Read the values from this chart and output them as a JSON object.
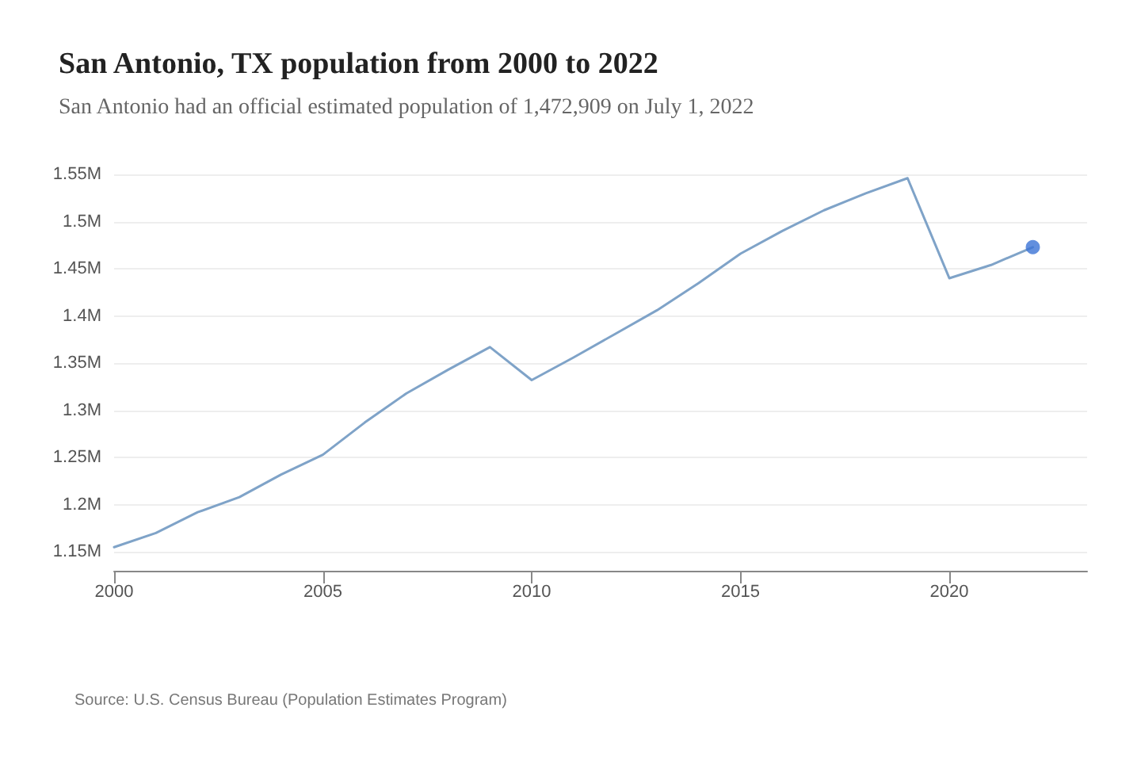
{
  "chart_data": {
    "type": "line",
    "title": "San Antonio, TX population from 2000 to 2022",
    "subtitle": "San Antonio had an official estimated population of 1,472,909 on July 1, 2022",
    "annotations": [
      "Source: U.S. Census Bureau (Population Estimates Program)"
    ],
    "x": [
      2000,
      2001,
      2002,
      2003,
      2004,
      2005,
      2006,
      2007,
      2008,
      2009,
      2010,
      2011,
      2012,
      2013,
      2014,
      2015,
      2016,
      2017,
      2018,
      2019,
      2020,
      2021,
      2022
    ],
    "series": [
      {
        "color": "#7fa3c8",
        "marker": "none",
        "values": [
          1155000,
          1170000,
          1192000,
          1208000,
          1232000,
          1253000,
          1287000,
          1318000,
          1343000,
          1367000,
          1332000,
          1356000,
          1381000,
          1406000,
          1435000,
          1466000,
          1490000,
          1512000,
          1530000,
          1546000,
          1440000,
          1454000,
          1472909
        ]
      },
      {
        "type": "scatter",
        "color": "#3b73d6",
        "marker": "circle",
        "x": [
          2022
        ],
        "values": [
          1472909
        ]
      }
    ],
    "xlim": [
      2000,
      2023.3
    ],
    "xticks": [
      2000,
      2005,
      2010,
      2015,
      2020
    ],
    "ylim": [
      1130000,
      1550000
    ],
    "yticks": [
      {
        "value": 1150000,
        "label": "1.15M"
      },
      {
        "value": 1200000,
        "label": "1.2M"
      },
      {
        "value": 1250000,
        "label": "1.25M"
      },
      {
        "value": 1300000,
        "label": "1.3M"
      },
      {
        "value": 1350000,
        "label": "1.35M"
      },
      {
        "value": 1400000,
        "label": "1.4M"
      },
      {
        "value": 1450000,
        "label": "1.45M"
      },
      {
        "value": 1500000,
        "label": "1.5M"
      },
      {
        "value": 1550000,
        "label": "1.55M"
      }
    ],
    "grid": "y"
  }
}
